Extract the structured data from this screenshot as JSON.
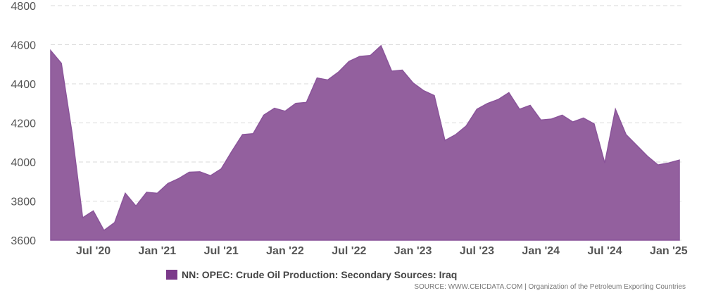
{
  "chart_data": {
    "type": "area",
    "y_ticks": [
      "3600",
      "3800",
      "4000",
      "4200",
      "4400",
      "4600",
      "4800"
    ],
    "ylim": [
      3600,
      4800
    ],
    "x_ticks": [
      "Jul '20",
      "Jan '21",
      "Jul '21",
      "Jan '22",
      "Jul '22",
      "Jan '23",
      "Jul '23",
      "Jan '24",
      "Jul '24",
      "Jan '25"
    ],
    "x": [
      "2020-03",
      "2020-04",
      "2020-05",
      "2020-06",
      "2020-07",
      "2020-08",
      "2020-09",
      "2020-10",
      "2020-11",
      "2020-12",
      "2021-01",
      "2021-02",
      "2021-03",
      "2021-04",
      "2021-05",
      "2021-06",
      "2021-07",
      "2021-08",
      "2021-09",
      "2021-10",
      "2021-11",
      "2021-12",
      "2022-01",
      "2022-02",
      "2022-03",
      "2022-04",
      "2022-05",
      "2022-06",
      "2022-07",
      "2022-08",
      "2022-09",
      "2022-10",
      "2022-11",
      "2022-12",
      "2023-01",
      "2023-02",
      "2023-03",
      "2023-04",
      "2023-05",
      "2023-06",
      "2023-07",
      "2023-08",
      "2023-09",
      "2023-10",
      "2023-11",
      "2023-12",
      "2024-01",
      "2024-02",
      "2024-03",
      "2024-04",
      "2024-05",
      "2024-06",
      "2024-07",
      "2024-08",
      "2024-09",
      "2024-10",
      "2024-11",
      "2024-12",
      "2025-01",
      "2025-02"
    ],
    "series": [
      {
        "name": "NN: OPEC: Crude Oil Production: Secondary Sources: Iraq",
        "color": "#93609e",
        "values": [
          4570,
          4505,
          4150,
          3715,
          3750,
          3650,
          3690,
          3840,
          3775,
          3845,
          3840,
          3890,
          3915,
          3948,
          3950,
          3930,
          3965,
          4055,
          4140,
          4145,
          4240,
          4275,
          4260,
          4300,
          4305,
          4430,
          4420,
          4460,
          4515,
          4540,
          4545,
          4595,
          4465,
          4470,
          4405,
          4365,
          4340,
          4110,
          4140,
          4185,
          4270,
          4300,
          4320,
          4355,
          4270,
          4290,
          4215,
          4220,
          4240,
          4205,
          4225,
          4195,
          3995,
          4270,
          4140,
          4085,
          4030,
          3985,
          3995,
          4010
        ]
      }
    ],
    "legend": "bottom-center",
    "grid": true
  },
  "legend": {
    "label": "NN: OPEC: Crude Oil Production: Secondary Sources: Iraq",
    "color": "#7b3a8a"
  },
  "source": "SOURCE: WWW.CEICDATA.COM | Organization of the Petroleum Exporting Countries"
}
